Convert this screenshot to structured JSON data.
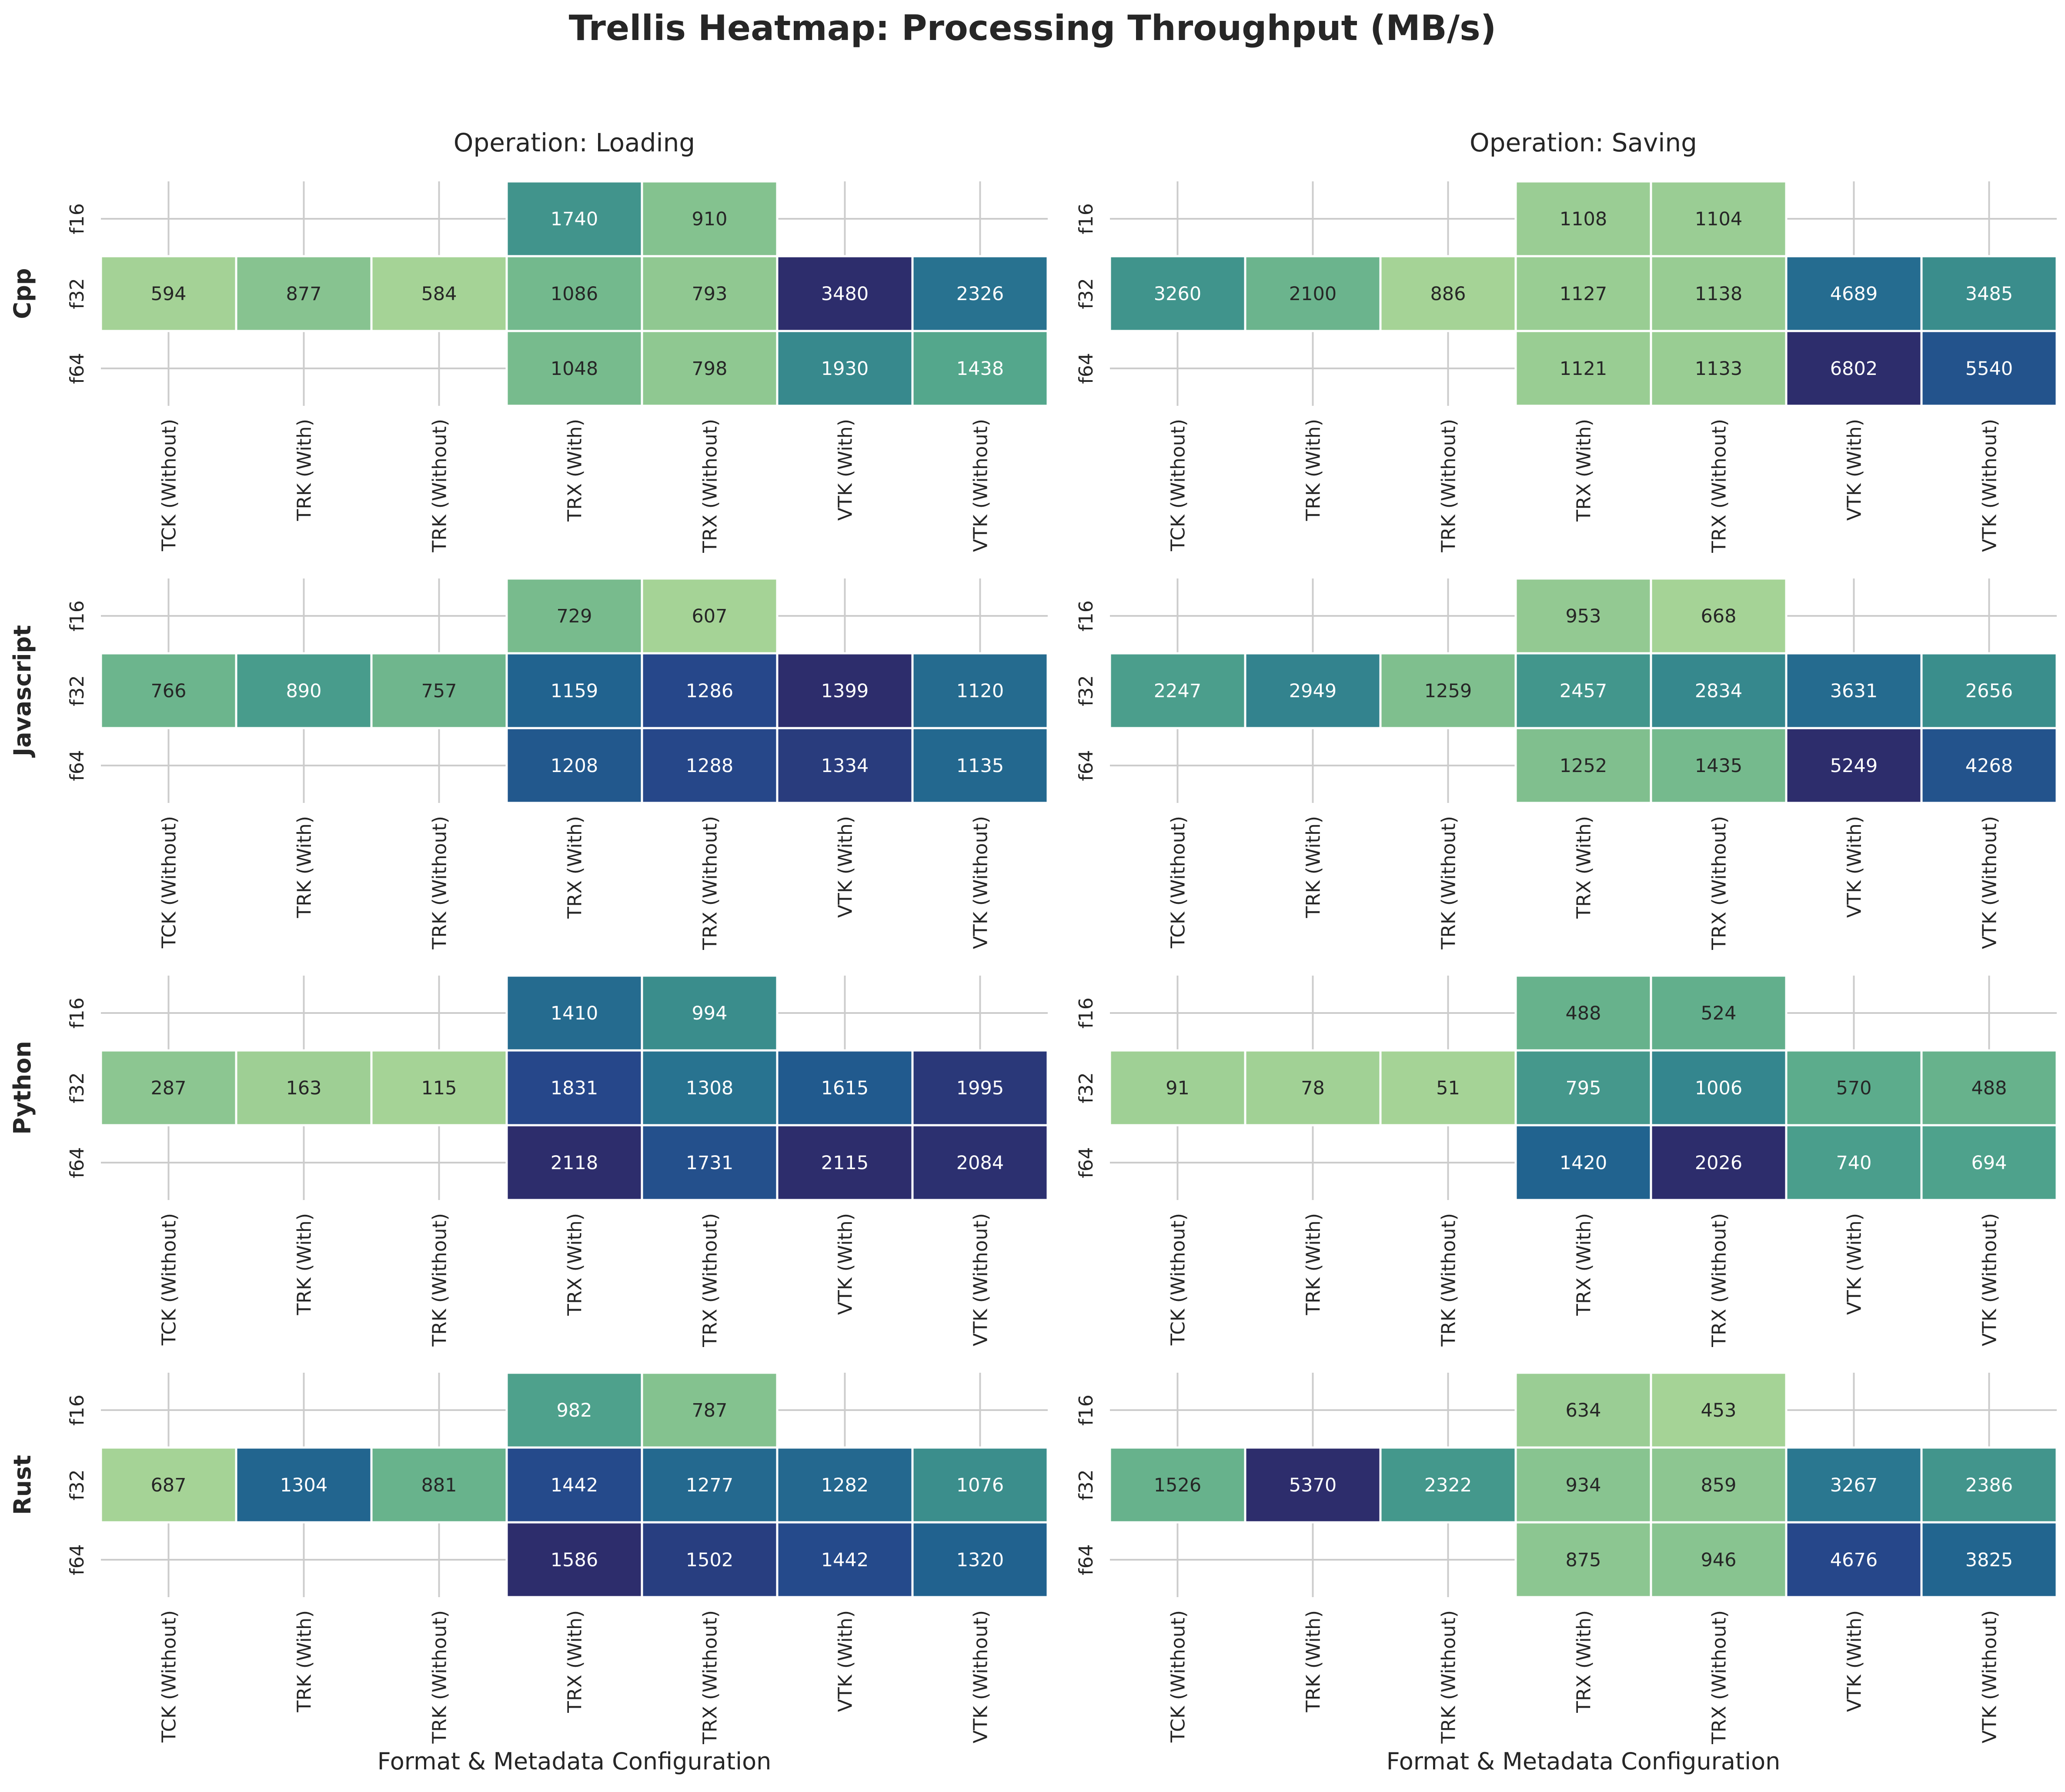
{
  "chart_data": {
    "type": "heatmap",
    "title": "Trellis Heatmap: Processing Throughput (MB/s)",
    "xlabel": "Format & Metadata Configuration",
    "column_title_prefix": "Operation: ",
    "operations": [
      "Loading",
      "Saving"
    ],
    "languages": [
      "Cpp",
      "Javascript",
      "Python",
      "Rust"
    ],
    "x_categories": [
      "TCK (Without)",
      "TRK (With)",
      "TRK (Without)",
      "TRX (With)",
      "TRX (Without)",
      "VTK (With)",
      "VTK (Without)"
    ],
    "y_categories": [
      "f16",
      "f32",
      "f64"
    ],
    "colormap": [
      "#a5d396",
      "#7bbd8d",
      "#56a98c",
      "#3b8f8c",
      "#2a7790",
      "#20608f",
      "#26478a",
      "#2d2d6c"
    ],
    "grid": true,
    "panels": [
      {
        "language": "Cpp",
        "operation": "Loading",
        "values": [
          [
            null,
            null,
            null,
            1740,
            910,
            null,
            null
          ],
          [
            594,
            877,
            584,
            1086,
            793,
            3480,
            2326
          ],
          [
            null,
            null,
            null,
            1048,
            798,
            1930,
            1438
          ]
        ]
      },
      {
        "language": "Cpp",
        "operation": "Saving",
        "values": [
          [
            null,
            null,
            null,
            1108,
            1104,
            null,
            null
          ],
          [
            3260,
            2100,
            886,
            1127,
            1138,
            4689,
            3485
          ],
          [
            null,
            null,
            null,
            1121,
            1133,
            6802,
            5540
          ]
        ]
      },
      {
        "language": "Javascript",
        "operation": "Loading",
        "values": [
          [
            null,
            null,
            null,
            729,
            607,
            null,
            null
          ],
          [
            766,
            890,
            757,
            1159,
            1286,
            1399,
            1120
          ],
          [
            null,
            null,
            null,
            1208,
            1288,
            1334,
            1135
          ]
        ]
      },
      {
        "language": "Javascript",
        "operation": "Saving",
        "values": [
          [
            null,
            null,
            null,
            953,
            668,
            null,
            null
          ],
          [
            2247,
            2949,
            1259,
            2457,
            2834,
            3631,
            2656
          ],
          [
            null,
            null,
            null,
            1252,
            1435,
            5249,
            4268
          ]
        ]
      },
      {
        "language": "Python",
        "operation": "Loading",
        "values": [
          [
            null,
            null,
            null,
            1410,
            994,
            null,
            null
          ],
          [
            287,
            163,
            115,
            1831,
            1308,
            1615,
            1995
          ],
          [
            null,
            null,
            null,
            2118,
            1731,
            2115,
            2084
          ]
        ]
      },
      {
        "language": "Python",
        "operation": "Saving",
        "values": [
          [
            null,
            null,
            null,
            488,
            524,
            null,
            null
          ],
          [
            91,
            78,
            51,
            795,
            1006,
            570,
            488
          ],
          [
            null,
            null,
            null,
            1420,
            2026,
            740,
            694
          ]
        ]
      },
      {
        "language": "Rust",
        "operation": "Loading",
        "values": [
          [
            null,
            null,
            null,
            982,
            787,
            null,
            null
          ],
          [
            687,
            1304,
            881,
            1442,
            1277,
            1282,
            1076
          ],
          [
            null,
            null,
            null,
            1586,
            1502,
            1442,
            1320
          ]
        ]
      },
      {
        "language": "Rust",
        "operation": "Saving",
        "values": [
          [
            null,
            null,
            null,
            634,
            453,
            null,
            null
          ],
          [
            1526,
            5370,
            2322,
            934,
            859,
            3267,
            2386
          ],
          [
            null,
            null,
            null,
            875,
            946,
            4676,
            3825
          ]
        ]
      }
    ]
  }
}
